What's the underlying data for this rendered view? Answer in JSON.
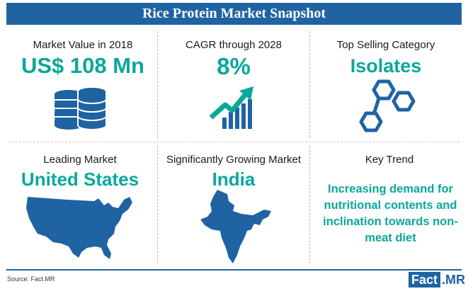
{
  "header": {
    "title": "Rice Protein Market Snapshot"
  },
  "cells": [
    {
      "label": "Market Value in 2018",
      "value": "US$ 108 Mn",
      "icon": "coins-stack-icon"
    },
    {
      "label": "CAGR through 2028",
      "value": "8%",
      "icon": "growth-chart-icon"
    },
    {
      "label": "Top Selling Category",
      "value": "Isolates",
      "icon": "molecule-hexagon-icon"
    },
    {
      "label": "Leading Market",
      "value": "United States",
      "icon": "usa-map-icon"
    },
    {
      "label": "Significantly Growing Market",
      "value": "India",
      "icon": "india-map-icon"
    },
    {
      "label": "Key Trend",
      "value": "Increasing demand for nutritional contents and inclination towards non-meat diet"
    }
  ],
  "footer": {
    "source": "Source: Fact.MR",
    "logo_part1": "Fact",
    "logo_part2": ".MR"
  },
  "colors": {
    "banner": "#1f63a3",
    "accent": "#0aa89a",
    "icon_blue": "#1f63a3"
  }
}
